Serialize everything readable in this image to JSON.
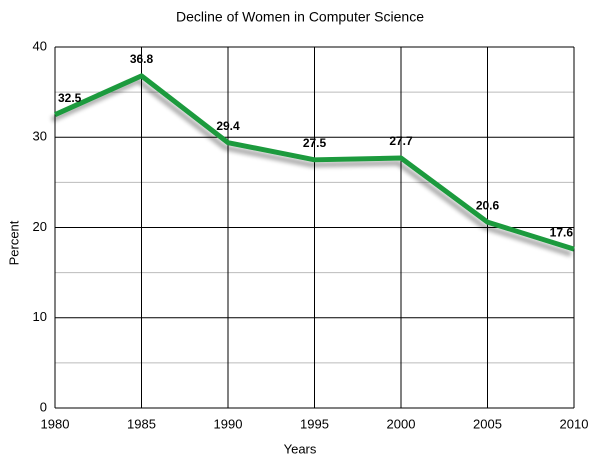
{
  "chart_data": {
    "type": "line",
    "title": "Decline of Women in Computer Science",
    "x_label": "Years",
    "y_label": "Percent",
    "x": [
      1980,
      1985,
      1990,
      1995,
      2000,
      2005,
      2010
    ],
    "series": [
      {
        "name": "Percent",
        "color": "#1b9a3e",
        "values": [
          32.5,
          36.8,
          29.4,
          27.5,
          27.7,
          20.6,
          17.6
        ]
      }
    ],
    "xlim": [
      1980,
      2010
    ],
    "xticks": [
      1980,
      1985,
      1990,
      1995,
      2000,
      2005,
      2010
    ],
    "ylim": [
      0,
      40
    ],
    "yticks": [
      0,
      10,
      20,
      30,
      40
    ],
    "minor_yticks": [
      5,
      15,
      25,
      35
    ],
    "grid": true,
    "data_labels": true
  }
}
